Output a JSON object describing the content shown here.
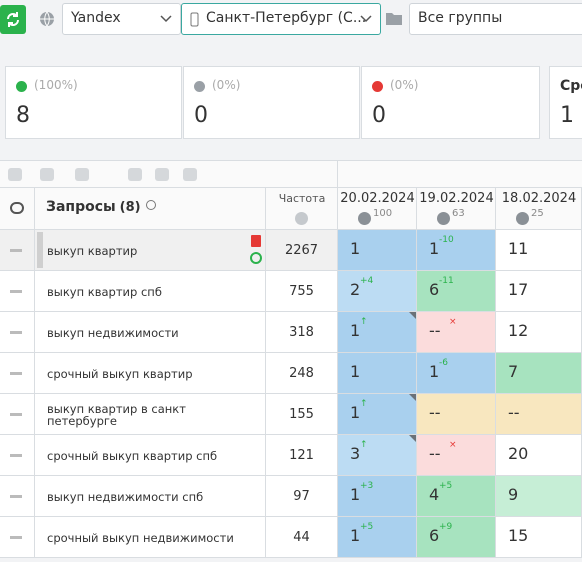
{
  "toolbar": {
    "search_engine": "Yandex",
    "region": "Санкт-Петербург (С...",
    "group": "Все группы"
  },
  "stats": [
    {
      "percent": "(100%)",
      "value": 8,
      "icon_color": "#2bb24c"
    },
    {
      "percent": "(0%)",
      "value": 0,
      "icon_color": "#9aa0a6"
    },
    {
      "percent": "(0%)",
      "value": 0,
      "icon_color": "#e53935"
    },
    {
      "label": "Сре",
      "value": 1
    }
  ],
  "table": {
    "query_header": "Запросы",
    "query_count": "(8)",
    "freq_header": "Частота",
    "dates": [
      {
        "date": "20.02.2024",
        "count": 100
      },
      {
        "date": "19.02.2024",
        "count": 63
      },
      {
        "date": "18.02.2024",
        "count": 25
      }
    ],
    "rows": [
      {
        "query": "выкуп квартир",
        "freq": 2267,
        "cells": [
          {
            "pos": 1,
            "color": "#a9d0ee"
          },
          {
            "pos": 1,
            "delta": "-10",
            "delta_color": "#2bb24c",
            "color": "#a9d0ee"
          },
          {
            "pos": 11,
            "color": "#ffffff"
          }
        ]
      },
      {
        "query": "выкуп квартир спб",
        "freq": 755,
        "cells": [
          {
            "pos": 2,
            "delta": "+4",
            "delta_color": "#2bb24c",
            "color": "#bcdcf3"
          },
          {
            "pos": 6,
            "delta": "-11",
            "delta_color": "#2bb24c",
            "color": "#a7e3bf"
          },
          {
            "pos": 17,
            "color": "#ffffff"
          }
        ]
      },
      {
        "query": "выкуп недвижимости",
        "freq": 318,
        "cells": [
          {
            "pos": 1,
            "delta": "↑",
            "delta_color": "#2bb24c",
            "color": "#a9d0ee",
            "flag": true
          },
          {
            "pos": "--",
            "delta": "×",
            "delta_color": "#e53935",
            "color": "#fbdcdc"
          },
          {
            "pos": 12,
            "color": "#ffffff"
          }
        ]
      },
      {
        "query": "срочный выкуп квартир",
        "freq": 248,
        "cells": [
          {
            "pos": 1,
            "color": "#a9d0ee"
          },
          {
            "pos": 1,
            "delta": "-6",
            "delta_color": "#2bb24c",
            "color": "#a9d0ee"
          },
          {
            "pos": 7,
            "color": "#a7e3bf"
          }
        ]
      },
      {
        "query": "выкуп квартир в санкт петербурге",
        "freq": 155,
        "cells": [
          {
            "pos": 1,
            "delta": "↑",
            "delta_color": "#2bb24c",
            "color": "#a9d0ee",
            "flag": true
          },
          {
            "pos": "--",
            "color": "#f8e7bf"
          },
          {
            "pos": "--",
            "color": "#f8e7bf"
          }
        ]
      },
      {
        "query": "срочный выкуп квартир спб",
        "freq": 121,
        "cells": [
          {
            "pos": 3,
            "delta": "↑",
            "delta_color": "#2bb24c",
            "color": "#bcdcf3",
            "flag": true
          },
          {
            "pos": "--",
            "delta": "×",
            "delta_color": "#e53935",
            "color": "#fbdcdc"
          },
          {
            "pos": 20,
            "color": "#ffffff"
          }
        ]
      },
      {
        "query": "выкуп недвижимости спб",
        "freq": 97,
        "cells": [
          {
            "pos": 1,
            "delta": "+3",
            "delta_color": "#2bb24c",
            "color": "#a9d0ee"
          },
          {
            "pos": 4,
            "delta": "+5",
            "delta_color": "#2bb24c",
            "color": "#a7e3bf"
          },
          {
            "pos": 9,
            "color": "#c6eed6"
          }
        ]
      },
      {
        "query": "срочный выкуп недвижимости",
        "freq": 44,
        "cells": [
          {
            "pos": 1,
            "delta": "+5",
            "delta_color": "#2bb24c",
            "color": "#a9d0ee"
          },
          {
            "pos": 6,
            "delta": "+9",
            "delta_color": "#2bb24c",
            "color": "#a7e3bf"
          },
          {
            "pos": 15,
            "color": "#ffffff"
          }
        ]
      }
    ]
  }
}
